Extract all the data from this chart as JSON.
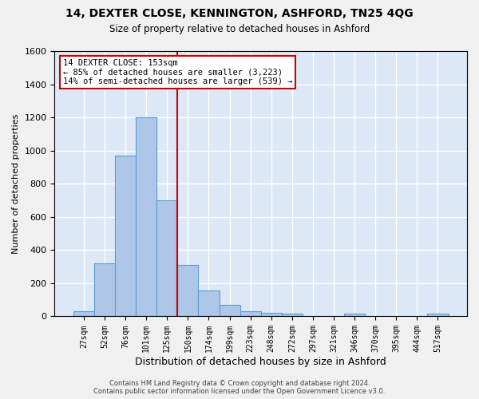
{
  "title": "14, DEXTER CLOSE, KENNINGTON, ASHFORD, TN25 4QG",
  "subtitle": "Size of property relative to detached houses in Ashford",
  "xlabel": "Distribution of detached houses by size in Ashford",
  "ylabel": "Number of detached properties",
  "bar_values": [
    30,
    320,
    970,
    1200,
    700,
    310,
    155,
    70,
    30,
    20,
    15,
    0,
    0,
    15,
    0,
    0,
    0,
    15
  ],
  "bar_labels": [
    "27sqm",
    "52sqm",
    "76sqm",
    "101sqm",
    "125sqm",
    "150sqm",
    "174sqm",
    "199sqm",
    "223sqm",
    "248sqm",
    "272sqm",
    "297sqm",
    "321sqm",
    "346sqm",
    "370sqm",
    "395sqm",
    "444sqm",
    "517sqm"
  ],
  "bar_color": "#aec6e8",
  "bar_edge_color": "#5a9fd4",
  "vline_color": "#cc0000",
  "annotation_text": "14 DEXTER CLOSE: 153sqm\n← 85% of detached houses are smaller (3,223)\n14% of semi-detached houses are larger (539) →",
  "annotation_box_color": "#ffffff",
  "annotation_box_edge": "#cc0000",
  "ylim": [
    0,
    1600
  ],
  "yticks": [
    0,
    200,
    400,
    600,
    800,
    1000,
    1200,
    1400,
    1600
  ],
  "background_color": "#dce8f5",
  "grid_color": "#ffffff",
  "footer_line1": "Contains HM Land Registry data © Crown copyright and database right 2024.",
  "footer_line2": "Contains public sector information licensed under the Open Government Licence v3.0."
}
